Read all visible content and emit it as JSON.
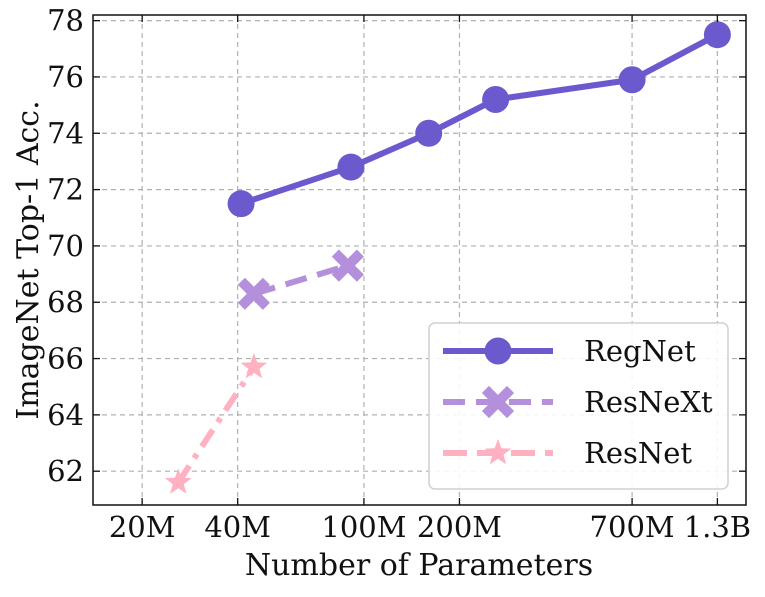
{
  "chart_data": {
    "type": "line",
    "title": "",
    "xlabel": "Number of Parameters",
    "ylabel": "ImageNet Top-1 Acc.",
    "xscale": "log",
    "xlim": [
      14,
      1600
    ],
    "ylim": [
      60.8,
      78.2
    ],
    "grid": true,
    "legend_position": "bottom-right",
    "x_ticks": [
      {
        "value": 20,
        "label": "20M"
      },
      {
        "value": 40,
        "label": "40M"
      },
      {
        "value": 100,
        "label": "100M"
      },
      {
        "value": 200,
        "label": "200M"
      },
      {
        "value": 700,
        "label": "700M"
      },
      {
        "value": 1300,
        "label": "1.3B"
      }
    ],
    "y_ticks": [
      {
        "value": 62,
        "label": "62"
      },
      {
        "value": 64,
        "label": "64"
      },
      {
        "value": 66,
        "label": "66"
      },
      {
        "value": 68,
        "label": "68"
      },
      {
        "value": 70,
        "label": "70"
      },
      {
        "value": 72,
        "label": "72"
      },
      {
        "value": 74,
        "label": "74"
      },
      {
        "value": 76,
        "label": "76"
      },
      {
        "value": 78,
        "label": "78"
      }
    ],
    "series": [
      {
        "name": "RegNet",
        "color": "#6a5acd",
        "marker": "circle",
        "line_style": "solid",
        "x": [
          41,
          91,
          160,
          260,
          700,
          1300
        ],
        "values": [
          71.5,
          72.8,
          74.0,
          75.2,
          75.9,
          77.5
        ]
      },
      {
        "name": "ResNeXt",
        "color": "#b48fdb",
        "marker": "x",
        "line_style": "dashed",
        "x": [
          45,
          89
        ],
        "values": [
          68.3,
          69.3
        ]
      },
      {
        "name": "ResNet",
        "color": "#ffb1c1",
        "marker": "star",
        "line_style": "dashdot",
        "x": [
          26,
          45
        ],
        "values": [
          61.6,
          65.7
        ]
      }
    ]
  }
}
